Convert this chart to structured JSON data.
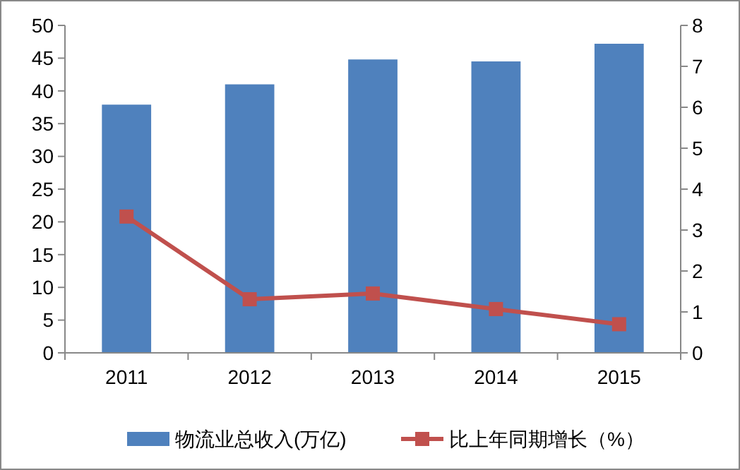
{
  "chart_data": {
    "type": "bar",
    "categories": [
      "2011",
      "2012",
      "2013",
      "2014",
      "2015"
    ],
    "series": [
      {
        "name": "物流业总收入(万亿)",
        "color": "#4f81bd",
        "values": [
          37.9,
          41.0,
          44.8,
          44.5,
          47.2
        ]
      },
      {
        "name": "比上年同期增长（%）",
        "color": "#c0504d",
        "type": "line",
        "axis": "y2",
        "marker": "square",
        "values": [
          3.33,
          1.31,
          1.45,
          1.07,
          0.7
        ]
      }
    ],
    "ylim": [
      0,
      50
    ],
    "yticks": [
      0,
      5,
      10,
      15,
      20,
      25,
      30,
      35,
      40,
      45,
      50
    ],
    "y2lim": [
      0,
      8
    ],
    "y2ticks": [
      0,
      1,
      2,
      3,
      4,
      5,
      6,
      7,
      8
    ],
    "legend": "bottom"
  }
}
